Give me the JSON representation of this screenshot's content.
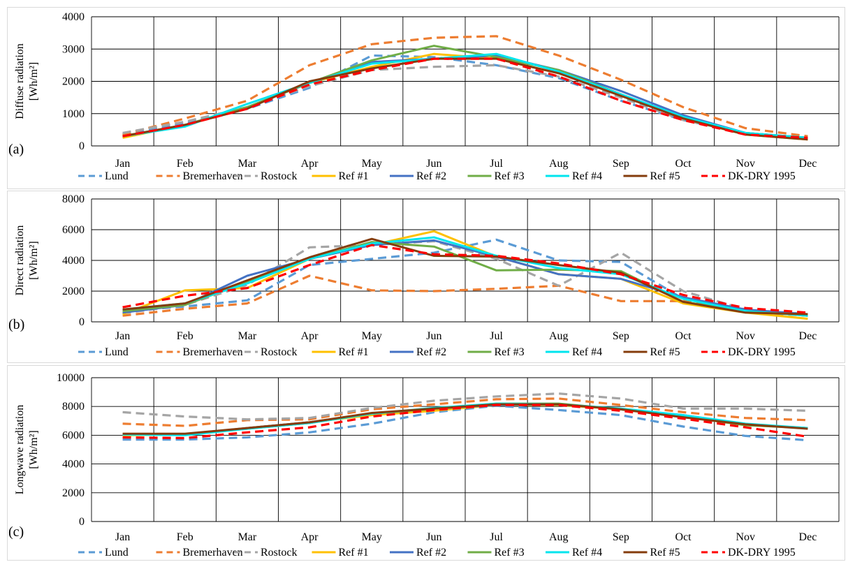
{
  "chart_data": [
    {
      "type": "line",
      "panel_label": "(a)",
      "ylabel": "Diffuse radiation",
      "yunit": "[Wh/m²]",
      "categories": [
        "Jan",
        "Feb",
        "Mar",
        "Apr",
        "May",
        "Jun",
        "Jul",
        "Aug",
        "Sep",
        "Oct",
        "Nov",
        "Dec"
      ],
      "ylim": [
        0,
        4000
      ],
      "yticks": [
        0,
        1000,
        2000,
        3000,
        4000
      ],
      "grid": true,
      "legend_position": "bottom",
      "series": [
        {
          "name": "Lund",
          "color": "#5b9bd5",
          "dash": true,
          "values": [
            350,
            700,
            1150,
            1800,
            2800,
            2750,
            2500,
            2100,
            1400,
            800,
            400,
            250
          ]
        },
        {
          "name": "Bremerhaven",
          "color": "#ed7d31",
          "dash": true,
          "values": [
            350,
            850,
            1400,
            2500,
            3150,
            3350,
            3400,
            2800,
            2050,
            1200,
            550,
            300
          ]
        },
        {
          "name": "Rostock",
          "color": "#a5a5a5",
          "dash": true,
          "values": [
            400,
            750,
            1200,
            1850,
            2350,
            2450,
            2500,
            2150,
            1500,
            800,
            400,
            250
          ]
        },
        {
          "name": "Ref #1",
          "color": "#ffc000",
          "dash": false,
          "values": [
            250,
            650,
            1200,
            1950,
            2450,
            2850,
            2700,
            2250,
            1600,
            850,
            350,
            200
          ]
        },
        {
          "name": "Ref #2",
          "color": "#4472c4",
          "dash": false,
          "values": [
            300,
            650,
            1200,
            1950,
            2600,
            2700,
            2800,
            2350,
            1700,
            950,
            400,
            250
          ]
        },
        {
          "name": "Ref #3",
          "color": "#70ad47",
          "dash": false,
          "values": [
            300,
            650,
            1200,
            1950,
            2650,
            3100,
            2750,
            2350,
            1600,
            850,
            400,
            250
          ]
        },
        {
          "name": "Ref #4",
          "color": "#00e5ee",
          "dash": false,
          "values": [
            300,
            600,
            1300,
            1950,
            2550,
            2700,
            2850,
            2300,
            1600,
            900,
            400,
            250
          ]
        },
        {
          "name": "Ref #5",
          "color": "#843c0c",
          "dash": false,
          "values": [
            300,
            650,
            1150,
            2000,
            2400,
            2700,
            2700,
            2250,
            1550,
            850,
            350,
            200
          ]
        },
        {
          "name": "DK-DRY 1995",
          "color": "#ff0000",
          "dash": true,
          "values": [
            300,
            650,
            1150,
            1900,
            2350,
            2700,
            2700,
            2150,
            1400,
            800,
            350,
            250
          ]
        }
      ]
    },
    {
      "type": "line",
      "panel_label": "(b)",
      "ylabel": "Direct radiation",
      "yunit": "[Wh/m²]",
      "categories": [
        "Jan",
        "Feb",
        "Mar",
        "Apr",
        "May",
        "Jun",
        "Jul",
        "Aug",
        "Sep",
        "Oct",
        "Nov",
        "Dec"
      ],
      "ylim": [
        0,
        8000
      ],
      "yticks": [
        0,
        2000,
        4000,
        6000,
        8000
      ],
      "grid": true,
      "legend_position": "bottom",
      "series": [
        {
          "name": "Lund",
          "color": "#5b9bd5",
          "dash": true,
          "values": [
            700,
            1000,
            1400,
            3700,
            4100,
            4500,
            5350,
            4000,
            3900,
            1500,
            800,
            400
          ]
        },
        {
          "name": "Bremerhaven",
          "color": "#ed7d31",
          "dash": true,
          "values": [
            400,
            850,
            1200,
            3000,
            2050,
            2000,
            2150,
            2350,
            1350,
            1350,
            650,
            400
          ]
        },
        {
          "name": "Rostock",
          "color": "#a5a5a5",
          "dash": true,
          "values": [
            550,
            1100,
            2400,
            4850,
            5000,
            5250,
            4100,
            2350,
            4500,
            2000,
            800,
            500
          ]
        },
        {
          "name": "Ref #1",
          "color": "#ffc000",
          "dash": false,
          "values": [
            500,
            2050,
            2200,
            4100,
            5000,
            5900,
            4250,
            3100,
            2800,
            1200,
            600,
            200
          ]
        },
        {
          "name": "Ref #2",
          "color": "#4472c4",
          "dash": false,
          "values": [
            600,
            1100,
            3000,
            4100,
            5000,
            5300,
            4250,
            3100,
            2800,
            1600,
            800,
            500
          ]
        },
        {
          "name": "Ref #3",
          "color": "#70ad47",
          "dash": false,
          "values": [
            700,
            1100,
            2600,
            4100,
            5200,
            4900,
            3350,
            3400,
            3300,
            1300,
            700,
            400
          ]
        },
        {
          "name": "Ref #4",
          "color": "#00e5ee",
          "dash": false,
          "values": [
            800,
            1200,
            2500,
            4100,
            5100,
            5500,
            4300,
            3500,
            3100,
            1500,
            700,
            400
          ]
        },
        {
          "name": "Ref #5",
          "color": "#843c0c",
          "dash": false,
          "values": [
            800,
            1200,
            2700,
            4200,
            5400,
            4300,
            4250,
            3700,
            3200,
            1300,
            600,
            500
          ]
        },
        {
          "name": "DK-DRY 1995",
          "color": "#ff0000",
          "dash": true,
          "values": [
            950,
            1700,
            2200,
            3700,
            5000,
            4400,
            4300,
            3800,
            3100,
            1750,
            900,
            600
          ]
        }
      ]
    },
    {
      "type": "line",
      "panel_label": "(c)",
      "ylabel": "Longwave radiation",
      "yunit": "[Wh/m²]",
      "categories": [
        "Jan",
        "Feb",
        "Mar",
        "Apr",
        "May",
        "Jun",
        "Jul",
        "Aug",
        "Sep",
        "Oct",
        "Nov",
        "Dec"
      ],
      "ylim": [
        0,
        10000
      ],
      "yticks": [
        0,
        2000,
        4000,
        6000,
        8000,
        10000
      ],
      "grid": true,
      "legend_position": "bottom",
      "series": [
        {
          "name": "Lund",
          "color": "#5b9bd5",
          "dash": true,
          "values": [
            5700,
            5700,
            5850,
            6200,
            6800,
            7600,
            8050,
            7750,
            7400,
            6600,
            5950,
            5650
          ]
        },
        {
          "name": "Bremerhaven",
          "color": "#ed7d31",
          "dash": true,
          "values": [
            6800,
            6650,
            7050,
            7100,
            7800,
            8150,
            8500,
            8550,
            8100,
            7600,
            7200,
            7050
          ]
        },
        {
          "name": "Rostock",
          "color": "#a5a5a5",
          "dash": true,
          "values": [
            7600,
            7300,
            7100,
            7200,
            7900,
            8400,
            8700,
            8900,
            8550,
            7850,
            7850,
            7700
          ]
        },
        {
          "name": "Ref #1",
          "color": "#ffc000",
          "dash": false,
          "values": [
            6000,
            6050,
            6500,
            6900,
            7400,
            7700,
            8100,
            8100,
            7800,
            7300,
            6700,
            6500
          ]
        },
        {
          "name": "Ref #2",
          "color": "#4472c4",
          "dash": false,
          "values": [
            6050,
            6050,
            6500,
            6900,
            7500,
            7850,
            8100,
            8150,
            7800,
            7400,
            6750,
            6500
          ]
        },
        {
          "name": "Ref #3",
          "color": "#70ad47",
          "dash": false,
          "values": [
            6050,
            6050,
            6450,
            6850,
            7500,
            7850,
            8200,
            8200,
            7800,
            7300,
            6700,
            6500
          ]
        },
        {
          "name": "Ref #4",
          "color": "#00e5ee",
          "dash": false,
          "values": [
            6050,
            6000,
            6450,
            6850,
            7500,
            7900,
            8200,
            8150,
            7850,
            7400,
            6800,
            6500
          ]
        },
        {
          "name": "Ref #5",
          "color": "#843c0c",
          "dash": false,
          "values": [
            6100,
            6100,
            6500,
            6900,
            7550,
            7850,
            8150,
            8150,
            7800,
            7250,
            6750,
            6450
          ]
        },
        {
          "name": "DK-DRY 1995",
          "color": "#ff0000",
          "dash": true,
          "values": [
            5850,
            5800,
            6200,
            6550,
            7300,
            7750,
            8100,
            8100,
            7700,
            7150,
            6550,
            5900
          ]
        }
      ]
    }
  ]
}
